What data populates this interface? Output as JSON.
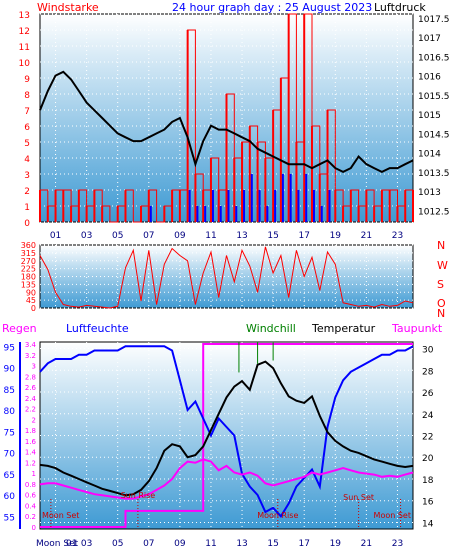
{
  "header": {
    "title": "24 hour graph day : 25 August 2023",
    "left_label": "Windstarke",
    "right_label": "Luftdruck"
  },
  "colors": {
    "red": "#ff0000",
    "dark_red": "#cc0000",
    "blue": "#0000ff",
    "navy": "#000080",
    "magenta": "#ff00ff",
    "green": "#008000",
    "black": "#000000",
    "bg_top": "#ffffff",
    "bg_bottom": "#3e9ad3"
  },
  "chart_data": [
    {
      "type": "line",
      "name": "wind-pressure",
      "title": "24 hour graph day : 25 August 2023",
      "ylabel_left": "Windstarke",
      "ylabel_right": "Luftdruck",
      "xlim": [
        0,
        24
      ],
      "x_ticks": [
        "01",
        "03",
        "05",
        "07",
        "09",
        "11",
        "13",
        "15",
        "17",
        "19",
        "21",
        "23"
      ],
      "x_tick_values": [
        1,
        3,
        5,
        7,
        9,
        11,
        13,
        15,
        17,
        19,
        21,
        23
      ],
      "ylim_left": [
        0,
        13
      ],
      "left_ticks": [
        0,
        1,
        2,
        3,
        4,
        5,
        6,
        7,
        8,
        9,
        10,
        11,
        12,
        13
      ],
      "ylim_right": [
        1012.2,
        1017.6
      ],
      "right_ticks": [
        "1012.5",
        "1013",
        "1013.5",
        "1014",
        "1014.5",
        "1015",
        "1015.5",
        "1016",
        "1016.5",
        "1017",
        "1017.5"
      ],
      "right_tick_values": [
        1012.5,
        1013,
        1013.5,
        1014,
        1014.5,
        1015,
        1015.5,
        1016,
        1016.5,
        1017,
        1017.5
      ],
      "pressure": {
        "x": [
          0,
          0.5,
          1,
          1.5,
          2,
          2.5,
          3,
          3.5,
          4,
          4.5,
          5,
          5.5,
          6,
          6.5,
          7,
          7.5,
          8,
          8.5,
          9,
          9.5,
          10,
          10.5,
          11,
          11.5,
          12,
          12.5,
          13,
          13.5,
          14,
          14.5,
          15,
          15.5,
          16,
          16.5,
          17,
          17.5,
          18,
          18.5,
          19,
          19.5,
          20,
          20.5,
          21,
          21.5,
          22,
          22.5,
          23,
          23.5,
          24
        ],
        "values": [
          1015.1,
          1015.6,
          1016.0,
          1016.1,
          1015.9,
          1015.6,
          1015.3,
          1015.1,
          1014.9,
          1014.7,
          1014.5,
          1014.4,
          1014.3,
          1014.3,
          1014.4,
          1014.5,
          1014.6,
          1014.8,
          1014.9,
          1014.4,
          1013.7,
          1014.3,
          1014.7,
          1014.6,
          1014.6,
          1014.5,
          1014.4,
          1014.3,
          1014.1,
          1014.0,
          1013.9,
          1013.8,
          1013.7,
          1013.7,
          1013.7,
          1013.6,
          1013.7,
          1013.8,
          1013.6,
          1013.5,
          1013.6,
          1013.9,
          1013.7,
          1013.6,
          1013.5,
          1013.6,
          1013.6,
          1013.7,
          1013.8
        ]
      },
      "wind_gust": {
        "x": [
          0,
          0.5,
          1,
          1.5,
          2,
          2.5,
          3,
          3.5,
          4,
          4.5,
          5,
          5.5,
          6,
          6.5,
          7,
          7.5,
          8,
          8.5,
          9,
          9.5,
          10,
          10.5,
          11,
          11.5,
          12,
          12.5,
          13,
          13.5,
          14,
          14.5,
          15,
          15.5,
          16,
          16.5,
          17,
          17.5,
          18,
          18.5,
          19,
          19.5,
          20,
          20.5,
          21,
          21.5,
          22,
          22.5,
          23,
          23.5,
          24
        ],
        "values": [
          2,
          1,
          2,
          2,
          1,
          2,
          1,
          2,
          1,
          0,
          1,
          2,
          0,
          1,
          2,
          0,
          1,
          2,
          2,
          12,
          3,
          2,
          4,
          2,
          8,
          4,
          5,
          6,
          5,
          4,
          7,
          9,
          14,
          5,
          14,
          6,
          3,
          7,
          2,
          1,
          2,
          1,
          2,
          1,
          2,
          2,
          1,
          2,
          2
        ]
      },
      "wind_speed": {
        "x": [
          0,
          0.5,
          1,
          1.5,
          2,
          2.5,
          3,
          3.5,
          4,
          4.5,
          5,
          5.5,
          6,
          6.5,
          7,
          7.5,
          8,
          8.5,
          9,
          9.5,
          10,
          10.5,
          11,
          11.5,
          12,
          12.5,
          13,
          13.5,
          14,
          14.5,
          15,
          15.5,
          16,
          16.5,
          17,
          17.5,
          18,
          18.5,
          19,
          19.5,
          20,
          20.5,
          21,
          21.5,
          22,
          22.5,
          23,
          23.5,
          24
        ],
        "values": [
          0,
          0,
          0,
          0,
          0,
          0,
          0,
          0,
          0,
          0,
          0,
          0,
          0,
          0,
          1,
          0,
          0,
          0,
          0,
          2,
          1,
          1,
          2,
          1,
          2,
          1,
          2,
          3,
          2,
          1,
          2,
          3,
          3,
          2,
          3,
          2,
          1,
          2,
          0,
          0,
          0,
          0,
          0,
          0,
          0,
          0,
          0,
          0,
          0
        ]
      }
    },
    {
      "type": "line",
      "name": "wind-direction",
      "xlim": [
        0,
        24
      ],
      "ylim": [
        0,
        360
      ],
      "y_ticks": [
        0,
        45,
        90,
        135,
        180,
        225,
        270,
        315,
        360
      ],
      "compass_labels": [
        "N",
        "W",
        "S",
        "O",
        "N"
      ],
      "direction": {
        "x": [
          0,
          0.5,
          1,
          1.5,
          2,
          2.5,
          3,
          3.5,
          4,
          4.5,
          5,
          5.5,
          6,
          6.5,
          7,
          7.5,
          8,
          8.5,
          9,
          9.5,
          10,
          10.5,
          11,
          11.5,
          12,
          12.5,
          13,
          13.5,
          14,
          14.5,
          15,
          15.5,
          16,
          16.5,
          17,
          17.5,
          18,
          18.5,
          19,
          19.5,
          20,
          20.5,
          21,
          21.5,
          22,
          22.5,
          23,
          23.5,
          24
        ],
        "values": [
          300,
          220,
          90,
          20,
          10,
          5,
          15,
          10,
          5,
          0,
          10,
          230,
          330,
          40,
          330,
          20,
          250,
          340,
          300,
          270,
          20,
          200,
          320,
          60,
          300,
          150,
          330,
          240,
          90,
          350,
          200,
          300,
          60,
          330,
          180,
          290,
          100,
          320,
          250,
          30,
          20,
          10,
          15,
          5,
          20,
          10,
          15,
          40,
          30
        ]
      }
    },
    {
      "type": "line",
      "name": "humidity-temperature",
      "labels": {
        "rain": "Regen",
        "humidity": "Luftfeuchte",
        "windchill": "Windchill",
        "temperature": "Temperatur",
        "dewpoint": "Taupunkt"
      },
      "xlim": [
        0,
        24
      ],
      "x_ticks": [
        "01",
        "03",
        "05",
        "07",
        "09",
        "11",
        "13",
        "15",
        "17",
        "19",
        "21",
        "23"
      ],
      "x_tick_values": [
        1,
        3,
        5,
        7,
        9,
        11,
        13,
        15,
        17,
        19,
        21,
        23
      ],
      "humidity_axis": {
        "ylim": [
          52,
          96
        ],
        "ticks": [
          55,
          60,
          65,
          70,
          75,
          80,
          85,
          90,
          95
        ]
      },
      "rain_axis": {
        "ylim": [
          0,
          3.4
        ],
        "ticks": [
          "0",
          "0.2",
          "0.4",
          "0.6",
          "0.8",
          "1",
          "1.2",
          "1.4",
          "1.6",
          "1.8",
          "2",
          "2.2",
          "2.4",
          "2.6",
          "2.8",
          "3",
          "3.2",
          "3.4"
        ],
        "tick_values": [
          0,
          0.2,
          0.4,
          0.6,
          0.8,
          1,
          1.2,
          1.4,
          1.6,
          1.8,
          2,
          2.2,
          2.4,
          2.6,
          2.8,
          3,
          3.2,
          3.4
        ]
      },
      "temperature_axis": {
        "ylim": [
          13.4,
          30.6
        ],
        "ticks": [
          14,
          16,
          18,
          20,
          22,
          24,
          26,
          28,
          30
        ]
      },
      "humidity": {
        "x": [
          0,
          0.5,
          1,
          1.5,
          2,
          2.5,
          3,
          3.5,
          4,
          4.5,
          5,
          5.5,
          6,
          6.5,
          7,
          7.5,
          8,
          8.5,
          9,
          9.5,
          10,
          10.5,
          11,
          11.5,
          12,
          12.5,
          13,
          13.5,
          14,
          14.5,
          15,
          15.5,
          16,
          16.5,
          17,
          17.5,
          18,
          18.5,
          19,
          19.5,
          20,
          20.5,
          21,
          21.5,
          22,
          22.5,
          23,
          23.5,
          24
        ],
        "values": [
          89,
          91,
          92,
          92,
          92,
          93,
          93,
          94,
          94,
          94,
          94,
          95,
          95,
          95,
          95,
          95,
          95,
          94,
          87,
          80,
          82,
          78,
          74,
          78,
          76,
          74,
          65,
          62,
          60,
          56,
          57,
          55,
          58,
          62,
          64,
          66,
          62,
          76,
          83,
          87,
          89,
          90,
          91,
          92,
          93,
          93,
          94,
          94,
          95
        ]
      },
      "temperature": {
        "x": [
          0,
          0.5,
          1,
          1.5,
          2,
          2.5,
          3,
          3.5,
          4,
          4.5,
          5,
          5.5,
          6,
          6.5,
          7,
          7.5,
          8,
          8.5,
          9,
          9.5,
          10,
          10.5,
          11,
          11.5,
          12,
          12.5,
          13,
          13.5,
          14,
          14.5,
          15,
          15.5,
          16,
          16.5,
          17,
          17.5,
          18,
          18.5,
          19,
          19.5,
          20,
          20.5,
          21,
          21.5,
          22,
          22.5,
          23,
          23.5,
          24
        ],
        "values": [
          19.3,
          19.2,
          19.0,
          18.6,
          18.3,
          18.0,
          17.7,
          17.4,
          17.1,
          16.9,
          16.7,
          16.5,
          16.6,
          17.0,
          17.8,
          19.0,
          20.6,
          21.2,
          21.0,
          20.0,
          20.2,
          21.0,
          22.5,
          24.0,
          25.5,
          26.5,
          27.0,
          26.2,
          28.5,
          28.8,
          28.2,
          26.8,
          25.6,
          25.2,
          25.0,
          25.6,
          23.8,
          22.3,
          21.5,
          21.0,
          20.6,
          20.4,
          20.1,
          19.8,
          19.6,
          19.4,
          19.2,
          19.1,
          19.2
        ]
      },
      "dewpoint": {
        "x": [
          0,
          0.5,
          1,
          1.5,
          2,
          2.5,
          3,
          3.5,
          4,
          4.5,
          5,
          5.5,
          6,
          6.5,
          7,
          7.5,
          8,
          8.5,
          9,
          9.5,
          10,
          10.5,
          11,
          11.5,
          12,
          12.5,
          13,
          13.5,
          14,
          14.5,
          15,
          15.5,
          16,
          16.5,
          17,
          17.5,
          18,
          18.5,
          19,
          19.5,
          20,
          20.5,
          21,
          21.5,
          22,
          22.5,
          23,
          23.5,
          24
        ],
        "values": [
          17.5,
          17.6,
          17.6,
          17.4,
          17.2,
          17.0,
          16.8,
          16.6,
          16.5,
          16.4,
          16.3,
          16.2,
          16.2,
          16.4,
          16.6,
          17.0,
          17.4,
          18.0,
          19.0,
          19.6,
          19.5,
          19.8,
          19.6,
          18.8,
          19.2,
          18.6,
          18.4,
          18.6,
          18.3,
          17.6,
          17.4,
          17.6,
          17.8,
          18.0,
          18.2,
          18.6,
          18.4,
          18.6,
          18.8,
          19.0,
          18.8,
          18.6,
          18.5,
          18.4,
          18.2,
          18.3,
          18.2,
          18.4,
          18.6
        ]
      },
      "windchill": {
        "x": [
          12.8,
          14.0,
          15.0
        ],
        "values": [
          27.8,
          28.6,
          28.9
        ]
      },
      "rain": {
        "x": [
          0,
          5.5,
          5.5,
          10.5,
          10.5,
          24
        ],
        "values": [
          0,
          0,
          0.3,
          0.3,
          3.4,
          3.4
        ]
      },
      "annotations": [
        {
          "label": "Moon Set",
          "x": 0.7
        },
        {
          "label": "Sun Rise",
          "x": 6.3
        },
        {
          "label": "Moon Rise",
          "x": 15.3
        },
        {
          "label": "Sun Set",
          "x": 20.5
        },
        {
          "label": "Moon Set",
          "x": 23.2
        }
      ],
      "bottom_labels": [
        "Moon Set",
        "01"
      ]
    }
  ]
}
